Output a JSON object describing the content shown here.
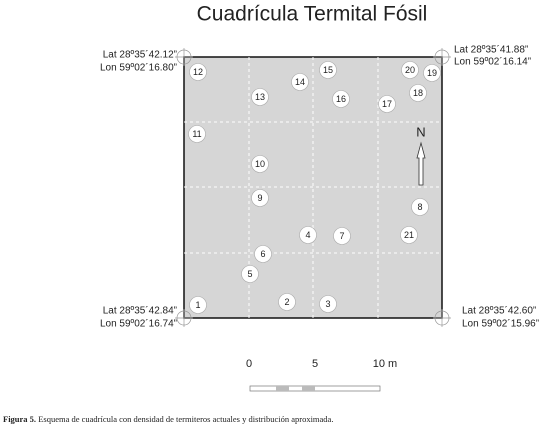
{
  "title": "Cuadrícula Termital Fósil",
  "corners": [
    {
      "lat": "Lat 28º35´42.12”",
      "lon": "Lon 59º02´16.80”"
    },
    {
      "lat": "Lat 28º35´41.88”",
      "lon": "Lon 59º02´16.14”"
    },
    {
      "lat": "Lat 28º35´42.84”",
      "lon": "Lon 59º02´16.74”"
    },
    {
      "lat": "Lat 28º35´42.60”",
      "lon": "Lon 59º02´15.96”"
    }
  ],
  "nodes": [
    "1",
    "2",
    "3",
    "4",
    "5",
    "6",
    "7",
    "8",
    "9",
    "10",
    "11",
    "12",
    "13",
    "14",
    "15",
    "16",
    "17",
    "18",
    "19",
    "20",
    "21"
  ],
  "north": "N",
  "scale": [
    "0",
    "5",
    "10 m"
  ],
  "caption": {
    "label": "Figura 5.",
    "text": "Esquema de cuadrícula con densidad de termiteros actuales y distribución aproximada."
  }
}
